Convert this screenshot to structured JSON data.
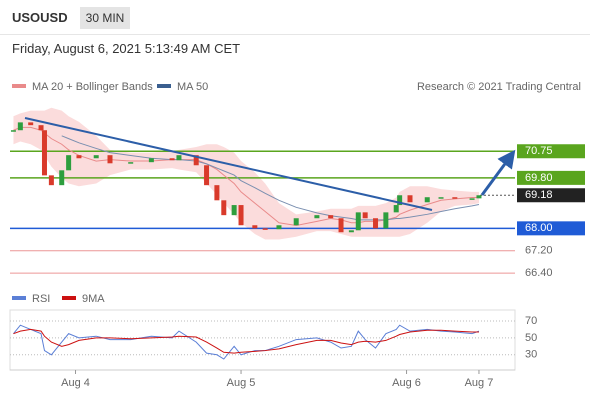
{
  "header": {
    "symbol": "USOUSD",
    "timeframe": "30 MIN",
    "date": "Friday, August 6, 2021 5:13:49 AM CET"
  },
  "chart_data": [
    {
      "type": "candle-line",
      "credit": "Research © 2021 Trading Central",
      "x": [
        1,
        3,
        6,
        9,
        10,
        12,
        15,
        17,
        20,
        25,
        29,
        35,
        41,
        47,
        49,
        54,
        57,
        60,
        62,
        65,
        67,
        71,
        74,
        78,
        83,
        89,
        93,
        96,
        99,
        101,
        103,
        106,
        109,
        112,
        113,
        116,
        121,
        125,
        129,
        134,
        136
      ],
      "xlim": [
        0,
        145
      ],
      "xticks": [
        {
          "value": 19,
          "label": "Aug 4"
        },
        {
          "value": 67,
          "label": "Aug 5"
        },
        {
          "value": 115,
          "label": "Aug 6"
        },
        {
          "value": 136,
          "label": "Aug 7"
        }
      ],
      "ylim": [
        65.8,
        72.4
      ],
      "up_color": "#2e9e3e",
      "down_color": "#d93a2b",
      "values": [
        71.5,
        71.78,
        71.68,
        71.5,
        69.89,
        69.54,
        70.07,
        70.61,
        70.5,
        70.61,
        70.32,
        70.36,
        70.5,
        70.43,
        70.61,
        70.25,
        69.54,
        69.0,
        68.47,
        68.83,
        68.11,
        68.0,
        67.97,
        68.11,
        68.36,
        68.47,
        68.36,
        67.86,
        67.93,
        68.57,
        68.36,
        68.0,
        68.57,
        68.83,
        69.18,
        68.93,
        69.11,
        69.11,
        69.07,
        69.07,
        69.18
      ],
      "series": [
        {
          "name": "MA 20 + Bollinger Bands",
          "color": "#e98a8a",
          "band_color": "#fbdcdc",
          "values": [
            71.5,
            71.6,
            71.6,
            71.5,
            71.4,
            71.2,
            71.0,
            70.8,
            70.6,
            70.4,
            70.45,
            70.4,
            70.4,
            70.45,
            70.45,
            70.45,
            70.3,
            70.1,
            69.9,
            69.6,
            69.3,
            68.9,
            68.6,
            68.2,
            68.1,
            68.25,
            68.35,
            68.3,
            68.2,
            68.2,
            68.25,
            68.25,
            68.3,
            68.4,
            68.5,
            68.65,
            68.85,
            69.0,
            69.05,
            69.1,
            69.1
          ],
          "upper": [
            72.0,
            72.1,
            72.2,
            72.2,
            72.2,
            72.3,
            72.2,
            72.0,
            71.8,
            71.3,
            70.8,
            70.7,
            70.7,
            70.75,
            70.8,
            70.9,
            71.0,
            71.0,
            70.9,
            70.7,
            70.4,
            70.0,
            69.6,
            68.9,
            68.5,
            68.6,
            68.7,
            68.7,
            68.7,
            68.8,
            68.8,
            68.8,
            68.9,
            69.1,
            69.3,
            69.5,
            69.5,
            69.4,
            69.35,
            69.3,
            69.3
          ],
          "lower": [
            71.0,
            71.1,
            71.0,
            70.8,
            70.6,
            70.2,
            69.8,
            69.6,
            69.5,
            69.6,
            69.9,
            70.1,
            70.1,
            70.15,
            70.1,
            70.0,
            69.6,
            69.2,
            68.9,
            68.5,
            68.2,
            67.8,
            67.6,
            67.6,
            67.7,
            67.9,
            67.9,
            67.8,
            67.7,
            67.7,
            67.7,
            67.7,
            67.7,
            67.7,
            67.7,
            67.8,
            68.2,
            68.6,
            68.8,
            68.85,
            68.9
          ]
        },
        {
          "name": "MA 50",
          "color": "#7a8fb0",
          "legend_color": "#3a5f8f",
          "values": [
            null,
            null,
            null,
            null,
            null,
            null,
            71.3,
            71.2,
            71.05,
            70.85,
            70.7,
            70.6,
            70.5,
            70.45,
            70.45,
            70.4,
            70.3,
            70.15,
            70.05,
            69.9,
            69.7,
            69.45,
            69.25,
            69.0,
            68.75,
            68.55,
            68.45,
            68.4,
            68.35,
            68.3,
            68.3,
            68.3,
            68.3,
            68.35,
            68.35,
            68.4,
            68.5,
            68.6,
            68.7,
            68.8,
            68.85
          ]
        }
      ],
      "levels": [
        {
          "value": 70.75,
          "color": "#5aa51e",
          "style": "box"
        },
        {
          "value": 69.8,
          "label": "69.80",
          "color": "#5aa51e",
          "style": "box"
        },
        {
          "value": 69.18,
          "color": "#222222",
          "style": "tag"
        },
        {
          "value": 68,
          "label": "68.00",
          "color": "#1f5bd6",
          "style": "box"
        },
        {
          "value": 67.2,
          "label": "67.20",
          "color": "#e05050",
          "style": "text"
        },
        {
          "value": 66.4,
          "label": "66.40",
          "color": "#e05050",
          "style": "text"
        }
      ]
    },
    {
      "type": "line",
      "x": [
        1,
        3,
        6,
        9,
        10,
        12,
        15,
        17,
        20,
        25,
        29,
        35,
        41,
        47,
        49,
        54,
        57,
        60,
        62,
        65,
        67,
        71,
        74,
        78,
        83,
        89,
        93,
        96,
        99,
        101,
        103,
        106,
        109,
        112,
        113,
        116,
        121,
        125,
        129,
        134,
        136
      ],
      "xlim": [
        0,
        145
      ],
      "ylim": [
        12,
        83
      ],
      "yticks": [
        70,
        50,
        30
      ],
      "series": [
        {
          "name": "RSI",
          "color": "#5b7fd6",
          "values": [
            55,
            65,
            60,
            55,
            35,
            30,
            45,
            55,
            50,
            52,
            48,
            48,
            52,
            50,
            58,
            45,
            32,
            30,
            25,
            40,
            30,
            35,
            35,
            40,
            48,
            50,
            45,
            38,
            40,
            58,
            48,
            38,
            55,
            60,
            65,
            58,
            60,
            58,
            57,
            55,
            58
          ]
        },
        {
          "name": "9MA",
          "color": "#cc1111",
          "values": [
            55,
            58,
            60,
            58,
            52,
            45,
            40,
            42,
            47,
            50,
            50,
            49,
            50,
            51,
            52,
            51,
            45,
            38,
            33,
            32,
            33,
            34,
            35,
            37,
            42,
            47,
            47,
            44,
            42,
            45,
            46,
            45,
            47,
            52,
            54,
            57,
            59,
            59,
            58,
            57,
            57
          ]
        }
      ]
    }
  ]
}
